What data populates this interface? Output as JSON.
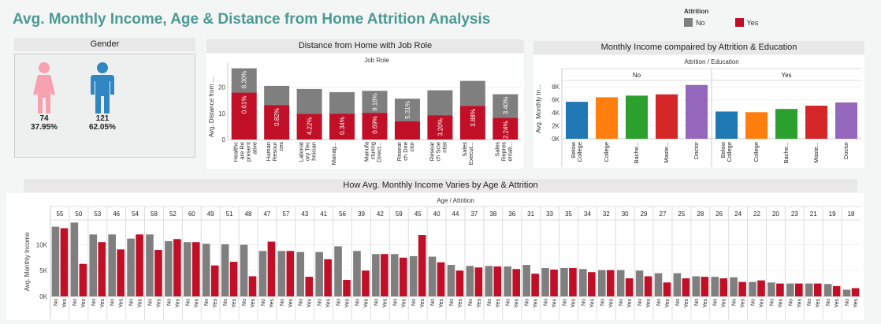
{
  "title": "Avg. Monthly Income, Age & Distance from Home Attrition Analysis",
  "legend": {
    "title": "Attrition",
    "items": [
      {
        "label": "No",
        "color": "#7f7f7f"
      },
      {
        "label": "Yes",
        "color": "#c00f26"
      }
    ]
  },
  "gender": {
    "title": "Gender",
    "female": {
      "count": "74",
      "pct": "37.95%",
      "color": "#f7a1b0"
    },
    "male": {
      "count": "121",
      "pct": "62.05%",
      "color": "#2f86c2"
    }
  },
  "chart_data": [
    {
      "type": "bar",
      "title": "Distance from Home with Job Role",
      "subtitle": "Job Role",
      "ylabel": "Avg. Distance from ...",
      "stacked": true,
      "ylim": [
        0,
        28
      ],
      "yticks": [
        0,
        10,
        20
      ],
      "categories": [
        "Healthcare Representative",
        "Human Resources",
        "Laboratory Technician",
        "Manager",
        "Manufacturing Director",
        "Research Director",
        "Research Scientist",
        "Sales Executive",
        "Sales Representative"
      ],
      "category_labels": [
        "Healthc\nare Re\npresent\native",
        "Human\nResour\nces",
        "Laborat\nory Tec\nhnician",
        "Manag...",
        "Manufa\ncturing\nDirect...",
        "Resear\nch Dire\nctor",
        "Resear\nch Scie\nntist",
        "Sales\nExecut...",
        "Sales\nRepres\nentati..."
      ],
      "series": [
        {
          "name": "Yes",
          "values": [
            17.9,
            13.2,
            9.8,
            9.9,
            10.2,
            7.0,
            9.3,
            12.9,
            8.3
          ],
          "labels": [
            "0.61%",
            "0.82%",
            "4.22%",
            "0.34%",
            "0.69%",
            "",
            "3.20%",
            "3.88%",
            "2.24%"
          ]
        },
        {
          "name": "No",
          "values": [
            9.3,
            7.3,
            9.5,
            8.2,
            8.4,
            8.6,
            9.5,
            9.5,
            9.0
          ],
          "labels": [
            "8.30%",
            "",
            "",
            "",
            "9.18%",
            "5.31%",
            "",
            "",
            "3.40%"
          ]
        }
      ]
    },
    {
      "type": "bar",
      "title": "Monthly Income compaired by Attrition & Education",
      "subtitle": "Attrition / Education",
      "ylabel": "Avg. Monthly In...",
      "ylim": [
        0,
        9000
      ],
      "yticks": [
        0,
        2000,
        4000,
        6000,
        8000
      ],
      "ytick_labels": [
        "0K",
        "2K",
        "4K",
        "6K",
        "8K"
      ],
      "groups": [
        {
          "name": "No",
          "categories": [
            "Below College",
            "College",
            "Bache...",
            "Maste...",
            "Doctor"
          ],
          "values": [
            5700,
            6400,
            6650,
            6850,
            8300
          ]
        },
        {
          "name": "Yes",
          "categories": [
            "Below College",
            "College",
            "Bache...",
            "Maste...",
            "Doctor"
          ],
          "values": [
            4200,
            4100,
            4600,
            5100,
            5600
          ]
        }
      ],
      "colors": [
        "#1f77b4",
        "#ff7f0e",
        "#2ca02c",
        "#d62728",
        "#9467bd"
      ]
    },
    {
      "type": "bar",
      "title": "How Avg. Monthly Income Varies by Age & Attrition",
      "subtitle": "Age / Attrition",
      "ylabel": "Avg. Monthly Income",
      "ylim": [
        0,
        14500
      ],
      "yticks": [
        0,
        5000,
        10000
      ],
      "ytick_labels": [
        "0K",
        "5K",
        "10K"
      ],
      "ages": [
        "55",
        "50",
        "53",
        "46",
        "54",
        "58",
        "52",
        "60",
        "49",
        "51",
        "48",
        "47",
        "57",
        "43",
        "41",
        "56",
        "39",
        "42",
        "59",
        "45",
        "40",
        "44",
        "37",
        "38",
        "36",
        "31",
        "33",
        "35",
        "34",
        "32",
        "30",
        "29",
        "27",
        "25",
        "28",
        "26",
        "24",
        "22",
        "20",
        "23",
        "21",
        "19",
        "18"
      ],
      "no_values": [
        13500,
        14300,
        12000,
        12000,
        11200,
        12000,
        10700,
        10500,
        10200,
        10100,
        10000,
        8800,
        8800,
        8600,
        8600,
        9700,
        8800,
        8200,
        8200,
        7800,
        7700,
        6100,
        5900,
        5900,
        5800,
        6100,
        5500,
        5500,
        5300,
        5100,
        5100,
        5000,
        4500,
        4500,
        3900,
        3800,
        3700,
        2800,
        2700,
        2500,
        2500,
        2400,
        1300
      ],
      "yes_values": [
        13200,
        6300,
        10500,
        9100,
        12000,
        9000,
        11100,
        10500,
        6000,
        6700,
        3900,
        10600,
        8800,
        3800,
        7200,
        3200,
        5000,
        8200,
        7500,
        11900,
        6600,
        5000,
        5600,
        5800,
        5300,
        4400,
        5200,
        5500,
        4700,
        5100,
        3500,
        3900,
        2700,
        3500,
        3800,
        3500,
        2800,
        3100,
        2500,
        2500,
        2500,
        2000,
        1600
      ],
      "x_labels": [
        "No",
        "Yes"
      ]
    }
  ]
}
